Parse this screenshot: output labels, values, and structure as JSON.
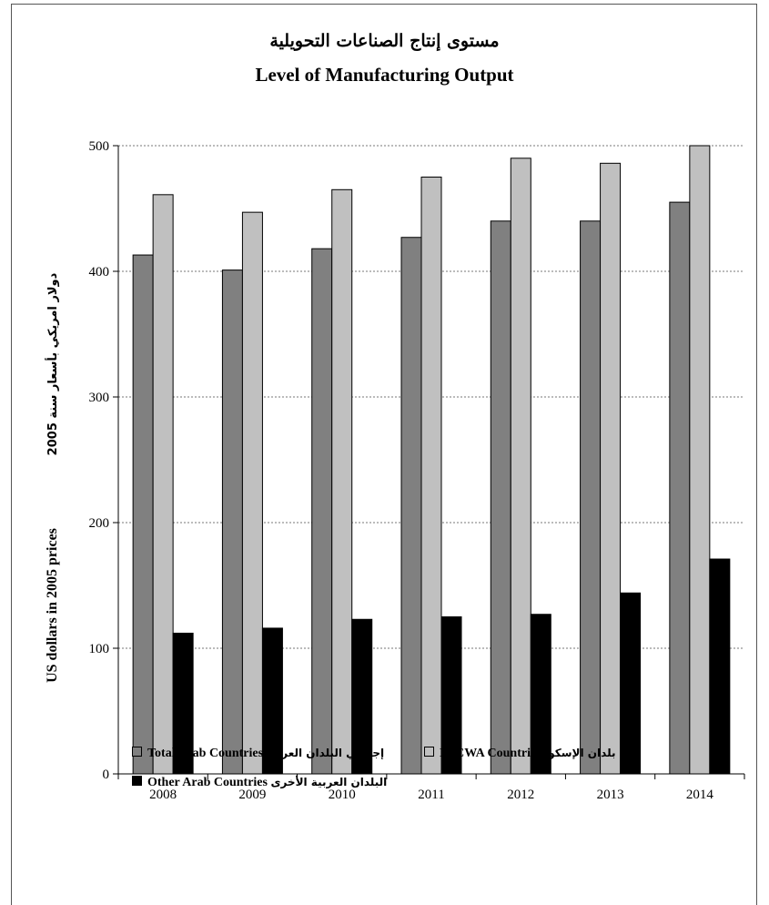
{
  "chart_data": {
    "type": "bar",
    "title": "مستوى إنتاج الصناعات التحويلية",
    "subtitle": "Level of Manufacturing Output",
    "ylabel_en": "US dollars in 2005 prices",
    "ylabel_ar": "دولار امريكي بأسعار سنة 2005",
    "xlabel": "",
    "ylim": [
      0,
      500
    ],
    "yticks": [
      "0",
      "100",
      "200",
      "300",
      "400",
      "500"
    ],
    "grid": true,
    "legend_position": "bottom",
    "categories": [
      "2008",
      "2009",
      "2010",
      "2011",
      "2012",
      "2013",
      "2014"
    ],
    "series": [
      {
        "name": "Total Arab Countries",
        "name_ar": "إجمالي البلدان العربية",
        "color": "#808080",
        "values": [
          413,
          401,
          418,
          427,
          440,
          440,
          455
        ]
      },
      {
        "name": "ESCWA Countries",
        "name_ar": "بلدان الإسكوا",
        "color": "#c0c0c0",
        "values": [
          461,
          447,
          465,
          475,
          490,
          486,
          500
        ]
      },
      {
        "name": "Other Arab Countries",
        "name_ar": "البلدان العربية الأخرى",
        "color": "#000000",
        "values": [
          112,
          116,
          123,
          125,
          127,
          144,
          171
        ]
      }
    ]
  }
}
